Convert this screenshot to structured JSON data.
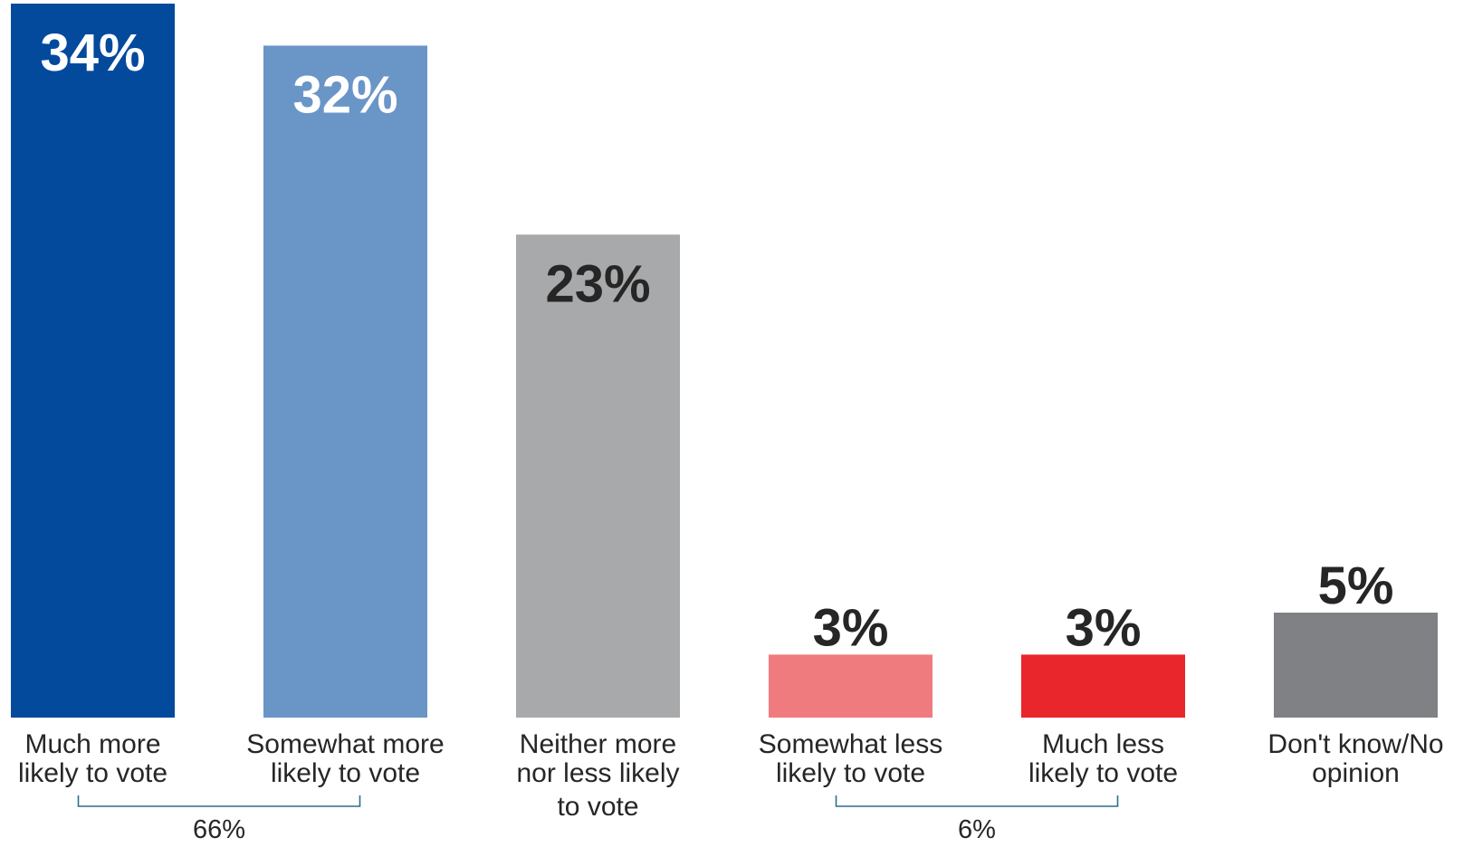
{
  "chart_data": {
    "type": "bar",
    "categories": [
      [
        "Much more",
        "likely to vote"
      ],
      [
        "Somewhat more",
        "likely to vote"
      ],
      [
        "Neither more",
        "nor less likely",
        "to vote"
      ],
      [
        "Somewhat less",
        "likely to vote"
      ],
      [
        "Much less",
        "likely to vote"
      ],
      [
        "Don't know/No",
        "opinion"
      ]
    ],
    "values": [
      34,
      32,
      23,
      3,
      3,
      5
    ],
    "value_labels": [
      "34%",
      "32%",
      "23%",
      "3%",
      "3%",
      "5%"
    ],
    "colors": [
      "#034a9d",
      "#6a95c7",
      "#a8a9ab",
      "#f07b7e",
      "#e8262b",
      "#808184"
    ],
    "label_colors": [
      "#ffffff",
      "#ffffff",
      "#262626",
      "#262626",
      "#262626",
      "#262626"
    ],
    "label_inside": [
      true,
      true,
      true,
      false,
      false,
      false
    ],
    "ylim": [
      0,
      34
    ],
    "grid": false,
    "groups": [
      {
        "label": "66%",
        "from": 0,
        "to": 1
      },
      {
        "label": "6%",
        "from": 3,
        "to": 4
      }
    ]
  }
}
